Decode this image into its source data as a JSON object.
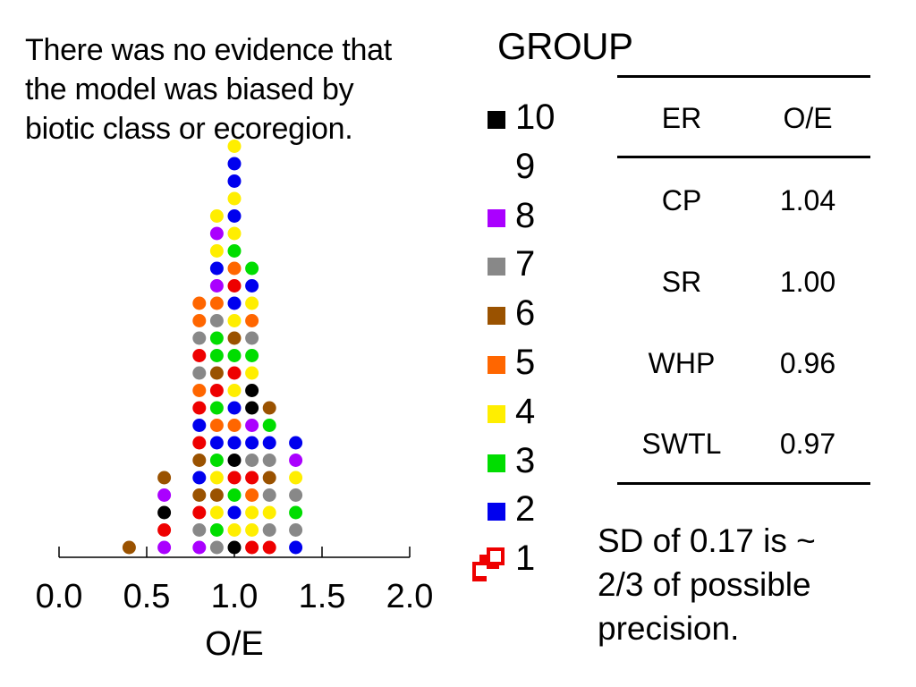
{
  "intro_text": "There was no evidence that\nthe model was biased by\nbiotic class or ecoregion.",
  "legend": {
    "title": "GROUP",
    "items": [
      {
        "label": "10",
        "color": "#000000"
      },
      {
        "label": "9",
        "color": "#ffffff"
      },
      {
        "label": "8",
        "color": "#aa00ff"
      },
      {
        "label": "7",
        "color": "#888888"
      },
      {
        "label": "6",
        "color": "#9a5200"
      },
      {
        "label": "5",
        "color": "#ff6600"
      },
      {
        "label": "4",
        "color": "#ffee00"
      },
      {
        "label": "3",
        "color": "#00dd00"
      },
      {
        "label": "2",
        "color": "#0000ee"
      },
      {
        "label": "1",
        "color": "#ee0000"
      }
    ]
  },
  "table": {
    "headers": [
      "ER",
      "O/E"
    ],
    "rows": [
      {
        "er": "CP",
        "oe": "1.04"
      },
      {
        "er": "SR",
        "oe": "1.00"
      },
      {
        "er": "WHP",
        "oe": "0.96"
      },
      {
        "er": "SWTL",
        "oe": "0.97"
      }
    ]
  },
  "footer_note": "SD of 0.17 is ~\n2/3 of possible\nprecision.",
  "chart_data": {
    "type": "dot",
    "xlabel": "O/E",
    "xlim": [
      0.0,
      2.0
    ],
    "xticks": [
      "0.0",
      "0.5",
      "1.0",
      "1.5",
      "2.0"
    ],
    "group_colors": {
      "1": "#ee0000",
      "2": "#0000ee",
      "3": "#00dd00",
      "4": "#ffee00",
      "5": "#ff6600",
      "6": "#9a5200",
      "7": "#888888",
      "8": "#aa00ff",
      "10": "#000000"
    },
    "stacks": [
      {
        "x": 0.4,
        "groups": [
          6
        ]
      },
      {
        "x": 0.6,
        "groups": [
          8,
          1,
          10,
          8,
          6
        ]
      },
      {
        "x": 0.8,
        "groups": [
          8,
          7,
          1,
          6,
          2,
          6,
          1,
          2,
          1,
          5,
          7,
          1,
          7,
          5,
          5
        ]
      },
      {
        "x": 0.9,
        "groups": [
          7,
          3,
          4,
          6,
          4,
          3,
          2,
          5,
          3,
          1,
          6,
          3,
          3,
          7,
          5,
          8,
          2,
          4,
          8,
          4
        ]
      },
      {
        "x": 1.0,
        "groups": [
          10,
          4,
          2,
          3,
          1,
          10,
          2,
          5,
          2,
          4,
          1,
          3,
          6,
          4,
          2,
          1,
          5,
          3,
          4,
          2,
          4,
          2,
          2,
          4
        ]
      },
      {
        "x": 1.1,
        "groups": [
          1,
          4,
          4,
          5,
          1,
          7,
          2,
          8,
          10,
          10,
          4,
          3,
          7,
          5,
          4,
          2,
          3
        ]
      },
      {
        "x": 1.2,
        "groups": [
          1,
          7,
          4,
          7,
          6,
          7,
          2,
          3,
          6
        ]
      },
      {
        "x": 1.35,
        "groups": [
          2,
          7,
          3,
          7,
          4,
          8,
          2
        ]
      }
    ]
  }
}
